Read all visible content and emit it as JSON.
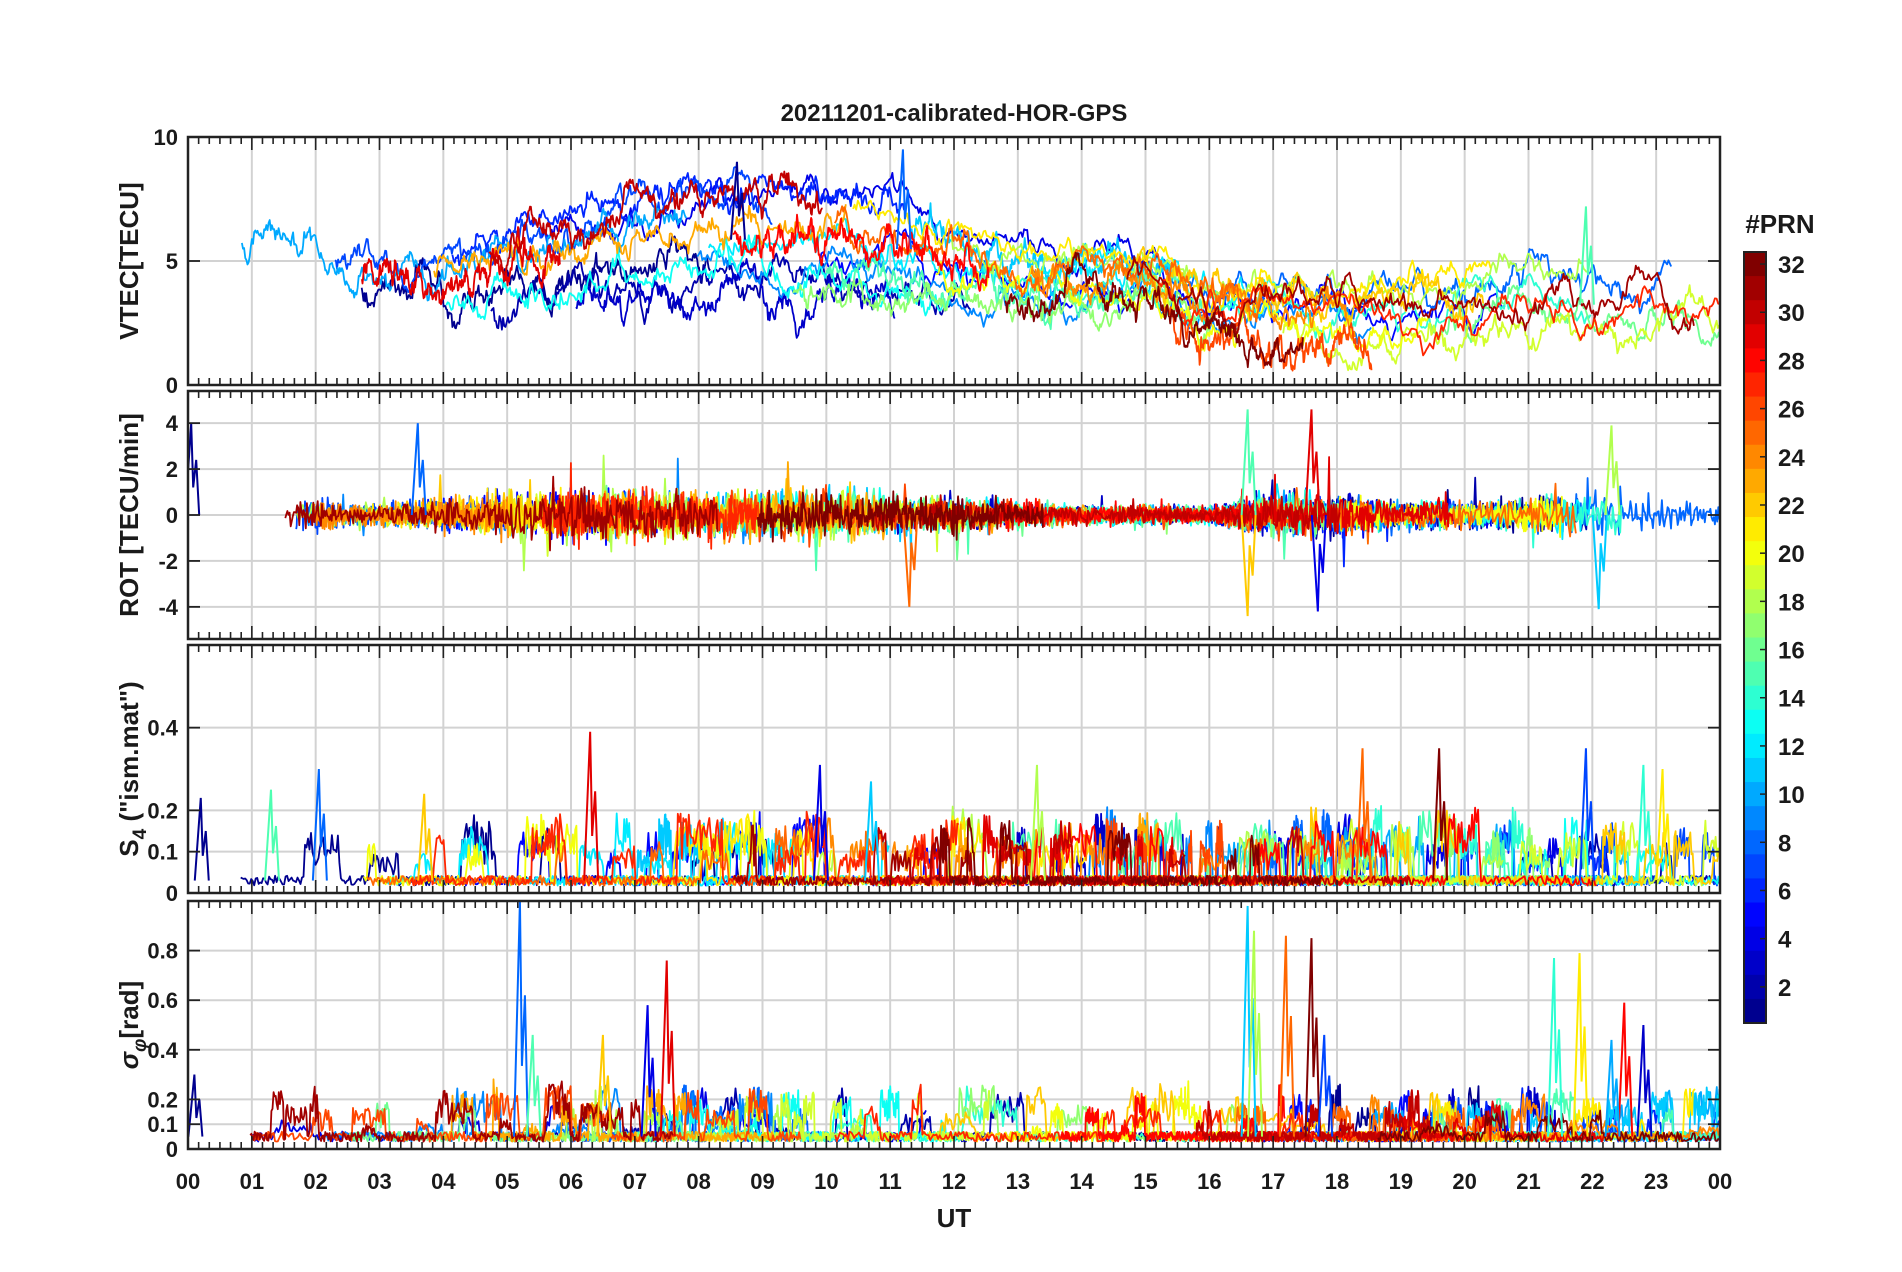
{
  "chart_data": {
    "type": "line",
    "title": "20211201-calibrated-HOR-GPS",
    "xlabel": "UT",
    "x_ticks": [
      "00",
      "01",
      "02",
      "03",
      "04",
      "05",
      "06",
      "07",
      "08",
      "09",
      "10",
      "11",
      "12",
      "13",
      "14",
      "15",
      "16",
      "17",
      "18",
      "19",
      "20",
      "21",
      "22",
      "23",
      "00"
    ],
    "x_range_hours": [
      0,
      24
    ],
    "grid": true,
    "colorbar": {
      "label": "#PRN",
      "range": [
        1,
        32
      ],
      "ticks": [
        2,
        4,
        6,
        8,
        10,
        12,
        14,
        16,
        18,
        20,
        22,
        24,
        26,
        28,
        30,
        32
      ],
      "colormap": "jet",
      "stops": [
        "#00008f",
        "#0000ff",
        "#0080ff",
        "#00ffff",
        "#80ff80",
        "#ffff00",
        "#ff8000",
        "#ff0000",
        "#800000"
      ]
    },
    "prn_count": 32,
    "panels": [
      {
        "id": "vtec",
        "ylabel": "VTEC[TECU]",
        "ylim": [
          0,
          10
        ],
        "yticks": [
          0,
          5,
          10
        ],
        "envelope_hours": [
          0,
          1,
          2,
          3,
          4,
          5,
          6,
          7,
          8,
          9,
          10,
          11,
          12,
          13,
          14,
          15,
          16,
          17,
          18,
          19,
          20,
          21,
          22,
          23,
          24
        ],
        "envelope_mean": [
          5.2,
          4.6,
          4.4,
          4.0,
          4.0,
          4.4,
          4.8,
          5.4,
          5.8,
          5.9,
          5.8,
          5.6,
          5.0,
          4.4,
          4.4,
          4.4,
          3.2,
          3.4,
          2.8,
          3.0,
          3.2,
          3.6,
          3.2,
          2.8,
          3.2
        ],
        "envelope_spread": [
          1.6,
          1.2,
          1.1,
          1.2,
          1.5,
          1.9,
          2.0,
          2.2,
          2.4,
          2.6,
          2.6,
          2.4,
          2.0,
          1.5,
          1.2,
          1.2,
          1.6,
          1.8,
          1.6,
          1.6,
          1.6,
          2.0,
          1.8,
          1.4,
          1.4
        ],
        "peaks": [
          {
            "x": 8.6,
            "y": 9.0
          },
          {
            "x": 11.2,
            "y": 9.5
          },
          {
            "x": 21.9,
            "y": 7.2
          }
        ]
      },
      {
        "id": "rot",
        "ylabel": "ROT [TECU/min]",
        "ylim": [
          -5.4,
          5.4
        ],
        "yticks": [
          -4,
          -2,
          0,
          2,
          4
        ],
        "envelope_hours": [
          0,
          1,
          2,
          3,
          4,
          5,
          6,
          7,
          8,
          9,
          10,
          11,
          12,
          13,
          14,
          15,
          16,
          17,
          18,
          19,
          20,
          21,
          22,
          23,
          24
        ],
        "envelope_amplitude": [
          0.8,
          0.6,
          0.8,
          0.6,
          0.8,
          1.2,
          1.4,
          1.3,
          1.1,
          1.2,
          1.3,
          1.0,
          0.9,
          0.7,
          0.5,
          0.5,
          0.4,
          1.2,
          1.0,
          0.7,
          0.7,
          0.8,
          1.4,
          0.9,
          0.5
        ],
        "peaks": [
          {
            "x": 0.05,
            "y": 4.0
          },
          {
            "x": 3.6,
            "y": 4.0
          },
          {
            "x": 16.6,
            "y": 4.6
          },
          {
            "x": 16.6,
            "y": -4.4
          },
          {
            "x": 17.6,
            "y": 4.6
          },
          {
            "x": 17.7,
            "y": -4.2
          },
          {
            "x": 22.1,
            "y": -4.1
          },
          {
            "x": 22.3,
            "y": 3.9
          },
          {
            "x": 11.3,
            "y": -4.0
          }
        ]
      },
      {
        "id": "s4",
        "ylabel": "S4 (\"ism.mat\")",
        "ylabel_main": "S",
        "ylabel_sub": "4",
        "ylabel_rest": " (\"ism.mat\")",
        "ylim": [
          0,
          0.6
        ],
        "yticks": [
          0,
          0.1,
          0.2,
          0.4
        ],
        "baseline": 0.03,
        "peaks": [
          {
            "x": 0.2,
            "y": 0.23
          },
          {
            "x": 2.05,
            "y": 0.3
          },
          {
            "x": 1.3,
            "y": 0.25
          },
          {
            "x": 3.7,
            "y": 0.24
          },
          {
            "x": 6.3,
            "y": 0.39
          },
          {
            "x": 9.9,
            "y": 0.31
          },
          {
            "x": 10.7,
            "y": 0.27
          },
          {
            "x": 13.3,
            "y": 0.31
          },
          {
            "x": 18.4,
            "y": 0.35
          },
          {
            "x": 19.6,
            "y": 0.35
          },
          {
            "x": 21.9,
            "y": 0.35
          },
          {
            "x": 22.8,
            "y": 0.31
          },
          {
            "x": 23.1,
            "y": 0.3
          }
        ]
      },
      {
        "id": "sigma_phi",
        "ylabel": "σφ[rad]",
        "ylabel_main": "σ",
        "ylabel_sub": "φ",
        "ylabel_rest": "[rad]",
        "ylim": [
          0,
          1.0
        ],
        "yticks": [
          0,
          0.1,
          0.2,
          0.4,
          0.6,
          0.8
        ],
        "baseline": 0.05,
        "peaks": [
          {
            "x": 0.1,
            "y": 0.3
          },
          {
            "x": 5.2,
            "y": 1.0
          },
          {
            "x": 5.4,
            "y": 0.46
          },
          {
            "x": 6.5,
            "y": 0.46
          },
          {
            "x": 7.5,
            "y": 0.76
          },
          {
            "x": 7.2,
            "y": 0.58
          },
          {
            "x": 16.6,
            "y": 0.98
          },
          {
            "x": 16.7,
            "y": 0.88
          },
          {
            "x": 17.2,
            "y": 0.86
          },
          {
            "x": 17.6,
            "y": 0.85
          },
          {
            "x": 17.8,
            "y": 0.46
          },
          {
            "x": 21.4,
            "y": 0.77
          },
          {
            "x": 21.8,
            "y": 0.79
          },
          {
            "x": 22.5,
            "y": 0.59
          },
          {
            "x": 22.8,
            "y": 0.5
          },
          {
            "x": 22.3,
            "y": 0.44
          }
        ]
      }
    ]
  }
}
